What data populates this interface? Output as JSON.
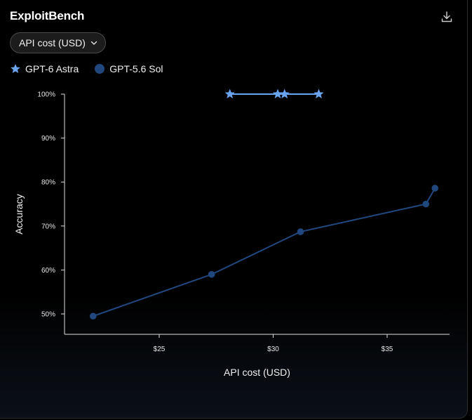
{
  "title": "ExploitBench",
  "selector": {
    "value": "API cost (USD)",
    "icon": "chevron-down-icon"
  },
  "download_icon": "download-icon",
  "legend": [
    {
      "label": "GPT-6 Astra",
      "marker": "star",
      "color": "#6aa4ee"
    },
    {
      "label": "GPT-5.6 Sol",
      "marker": "circle",
      "color": "#21477f"
    }
  ],
  "chart_data": {
    "type": "line",
    "xlabel": "API cost (USD)",
    "ylabel": "Accuracy",
    "xlim": [
      20,
      37.7
    ],
    "ylim": [
      45,
      100
    ],
    "x_ticks": [
      25,
      30,
      35
    ],
    "x_tick_labels": [
      "$25",
      "$30",
      "$35"
    ],
    "y_ticks": [
      50,
      60,
      70,
      80,
      90,
      100
    ],
    "y_tick_labels": [
      "50%",
      "60%",
      "70%",
      "80%",
      "90%",
      "100%"
    ],
    "grid": false,
    "legend_position": "top-left",
    "series": [
      {
        "name": "GPT-6 Astra",
        "marker": "star",
        "color": "#6aa4ee",
        "x": [
          28.1,
          30.2,
          30.5,
          32.0
        ],
        "y": [
          100,
          100,
          100,
          100
        ]
      },
      {
        "name": "GPT-5.6 Sol",
        "marker": "circle",
        "color": "#21477f",
        "x": [
          22.1,
          27.3,
          31.2,
          36.7,
          37.1
        ],
        "y": [
          49.5,
          59,
          68.7,
          75,
          78.6
        ]
      }
    ]
  }
}
